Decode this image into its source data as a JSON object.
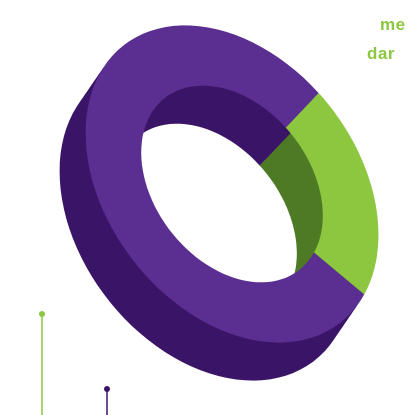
{
  "chart_data": {
    "type": "pie",
    "style": "3d-donut",
    "slices": [
      {
        "value": 22,
        "color": "#8dc63f",
        "side_color": "#4f7a25"
      },
      {
        "value": 78,
        "color": "#5b2e91",
        "side_color": "#3a1466"
      }
    ],
    "labels_clipped": [
      "",
      "me",
      "dar"
    ],
    "label_color": "#8dc63f",
    "leader_colors": [
      "#8dc63f",
      "#3a1466"
    ]
  }
}
